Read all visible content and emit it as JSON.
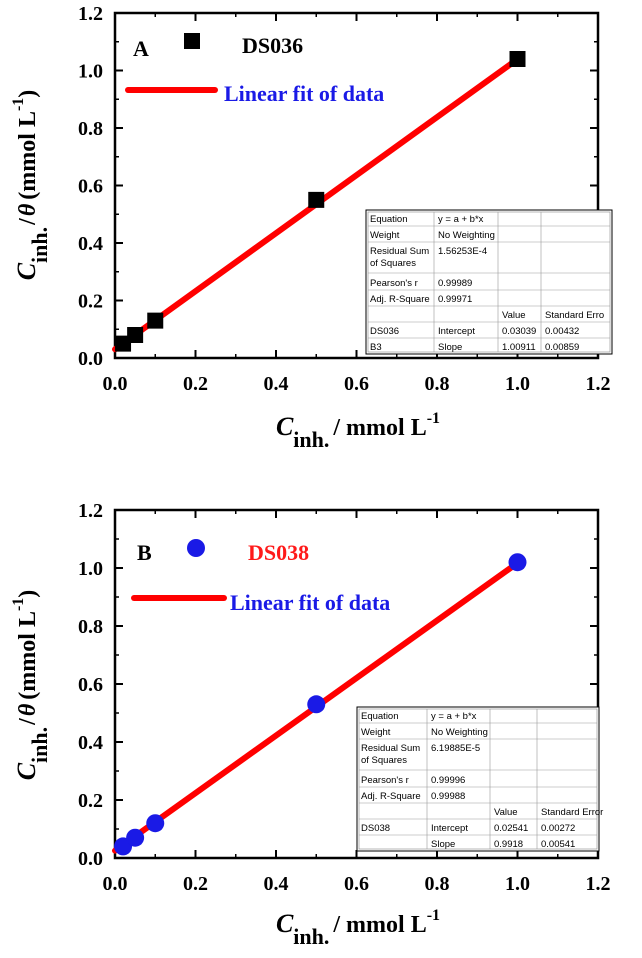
{
  "chart_data": [
    {
      "type": "scatter",
      "panel_label": "A",
      "xlabel_main": "C",
      "xlabel_sub": "inh.",
      "xlabel_rest": "/ mmol L",
      "xlabel_sup": "-1",
      "ylabel_main": "C",
      "ylabel_sub": "inh.",
      "ylabel_theta": "θ",
      "ylabel_rest": "(mmol L",
      "ylabel_sup": "-1",
      "ylabel_close": ")",
      "xlim": [
        0.0,
        1.2
      ],
      "ylim": [
        0.0,
        1.2
      ],
      "xticks": [
        "0.0",
        "0.2",
        "0.4",
        "0.6",
        "0.8",
        "1.0",
        "1.2"
      ],
      "yticks": [
        "0.0",
        "0.2",
        "0.4",
        "0.6",
        "0.8",
        "1.0",
        "1.2"
      ],
      "grid": false,
      "legend_position": "top-left",
      "series": [
        {
          "name": "DS036",
          "marker": "square",
          "color": "#000000",
          "name_color": "#000000",
          "x": [
            0.02,
            0.05,
            0.1,
            0.5,
            1.0
          ],
          "y": [
            0.05,
            0.08,
            0.13,
            0.55,
            1.04
          ]
        }
      ],
      "fit": {
        "label": "Linear fit of data",
        "color": "#ff0000",
        "intercept": 0.03039,
        "slope": 1.00911,
        "x_range": [
          0.0,
          1.0
        ]
      },
      "stats_table": {
        "rows": [
          [
            "Equation",
            "y = a + b*x",
            "",
            ""
          ],
          [
            "Weight",
            "No Weighting",
            "",
            ""
          ],
          [
            "Residual Sum of Squares",
            "1.56253E-4",
            "",
            ""
          ],
          [
            "Pearson's r",
            "0.99989",
            "",
            ""
          ],
          [
            "Adj. R-Square",
            "0.99971",
            "",
            ""
          ],
          [
            "",
            "",
            "Value",
            "Standard Erro"
          ],
          [
            "DS036",
            "Intercept",
            "0.03039",
            "0.00432"
          ],
          [
            "B3",
            "Slope",
            "1.00911",
            "0.00859"
          ]
        ]
      }
    },
    {
      "type": "scatter",
      "panel_label": "B",
      "xlabel_main": "C",
      "xlabel_sub": "inh.",
      "xlabel_rest": "/ mmol L",
      "xlabel_sup": "-1",
      "ylabel_main": "C",
      "ylabel_sub": "inh.",
      "ylabel_theta": "θ",
      "ylabel_rest": "(mmol L",
      "ylabel_sup": "-1",
      "ylabel_close": ")",
      "xlim": [
        0.0,
        1.2
      ],
      "ylim": [
        0.0,
        1.2
      ],
      "xticks": [
        "0.0",
        "0.2",
        "0.4",
        "0.6",
        "0.8",
        "1.0",
        "1.2"
      ],
      "yticks": [
        "0.0",
        "0.2",
        "0.4",
        "0.6",
        "0.8",
        "1.0",
        "1.2"
      ],
      "grid": false,
      "legend_position": "top-left",
      "series": [
        {
          "name": "DS038",
          "marker": "circle",
          "color": "#1a1ae6",
          "name_color": "#ff1a1a",
          "x": [
            0.02,
            0.05,
            0.1,
            0.5,
            1.0
          ],
          "y": [
            0.04,
            0.07,
            0.12,
            0.53,
            1.02
          ]
        }
      ],
      "fit": {
        "label": "Linear fit of data",
        "color": "#ff0000",
        "intercept": 0.02541,
        "slope": 0.9918,
        "x_range": [
          0.0,
          1.0
        ]
      },
      "stats_table": {
        "rows": [
          [
            "Equation",
            "y = a + b*x",
            "",
            ""
          ],
          [
            "Weight",
            "No Weighting",
            "",
            ""
          ],
          [
            "Residual Sum of Squares",
            "6.19885E-5",
            "",
            ""
          ],
          [
            "Pearson's r",
            "0.99996",
            "",
            ""
          ],
          [
            "Adj. R-Square",
            "0.99988",
            "",
            ""
          ],
          [
            "",
            "",
            "Value",
            "Standard Error"
          ],
          [
            "DS038",
            "Intercept",
            "0.02541",
            "0.00272"
          ],
          [
            "",
            "Slope",
            "0.9918",
            "0.00541"
          ]
        ]
      }
    }
  ]
}
